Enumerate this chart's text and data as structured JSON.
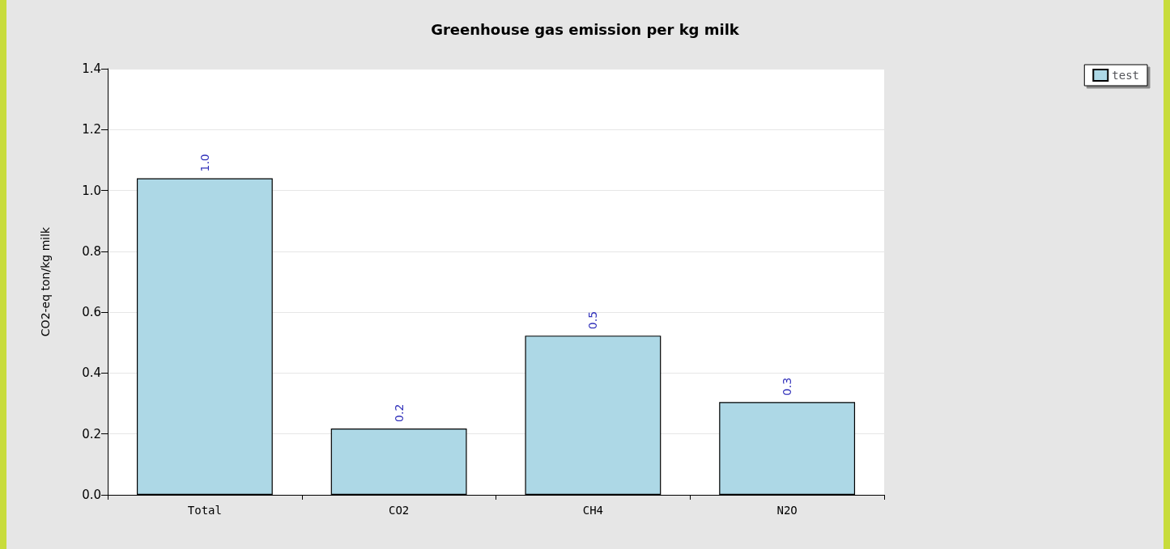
{
  "chart_data": {
    "type": "bar",
    "title": "Greenhouse gas emission per kg milk",
    "ylabel": "CO2-eq ton/kg milk",
    "categories": [
      "Total",
      "CO2",
      "CH4",
      "N2O"
    ],
    "series": [
      {
        "name": "test",
        "color": "#add8e6",
        "values": [
          1.04,
          0.218,
          0.523,
          0.305
        ],
        "value_labels": [
          "1.0",
          "0.2",
          "0.5",
          "0.3"
        ]
      }
    ],
    "ylim": [
      0,
      1.4
    ],
    "yticks": [
      {
        "value": 0,
        "label": "0.0"
      },
      {
        "value": 0.2,
        "label": "0.2"
      },
      {
        "value": 0.4,
        "label": "0.4"
      },
      {
        "value": 0.6,
        "label": "0.6"
      },
      {
        "value": 0.8,
        "label": "0.8"
      },
      {
        "value": 1,
        "label": "1.0"
      },
      {
        "value": 1.2,
        "label": "1.2"
      },
      {
        "value": 1.4,
        "label": "1.4"
      }
    ],
    "grid": "y",
    "legend": "top right"
  }
}
